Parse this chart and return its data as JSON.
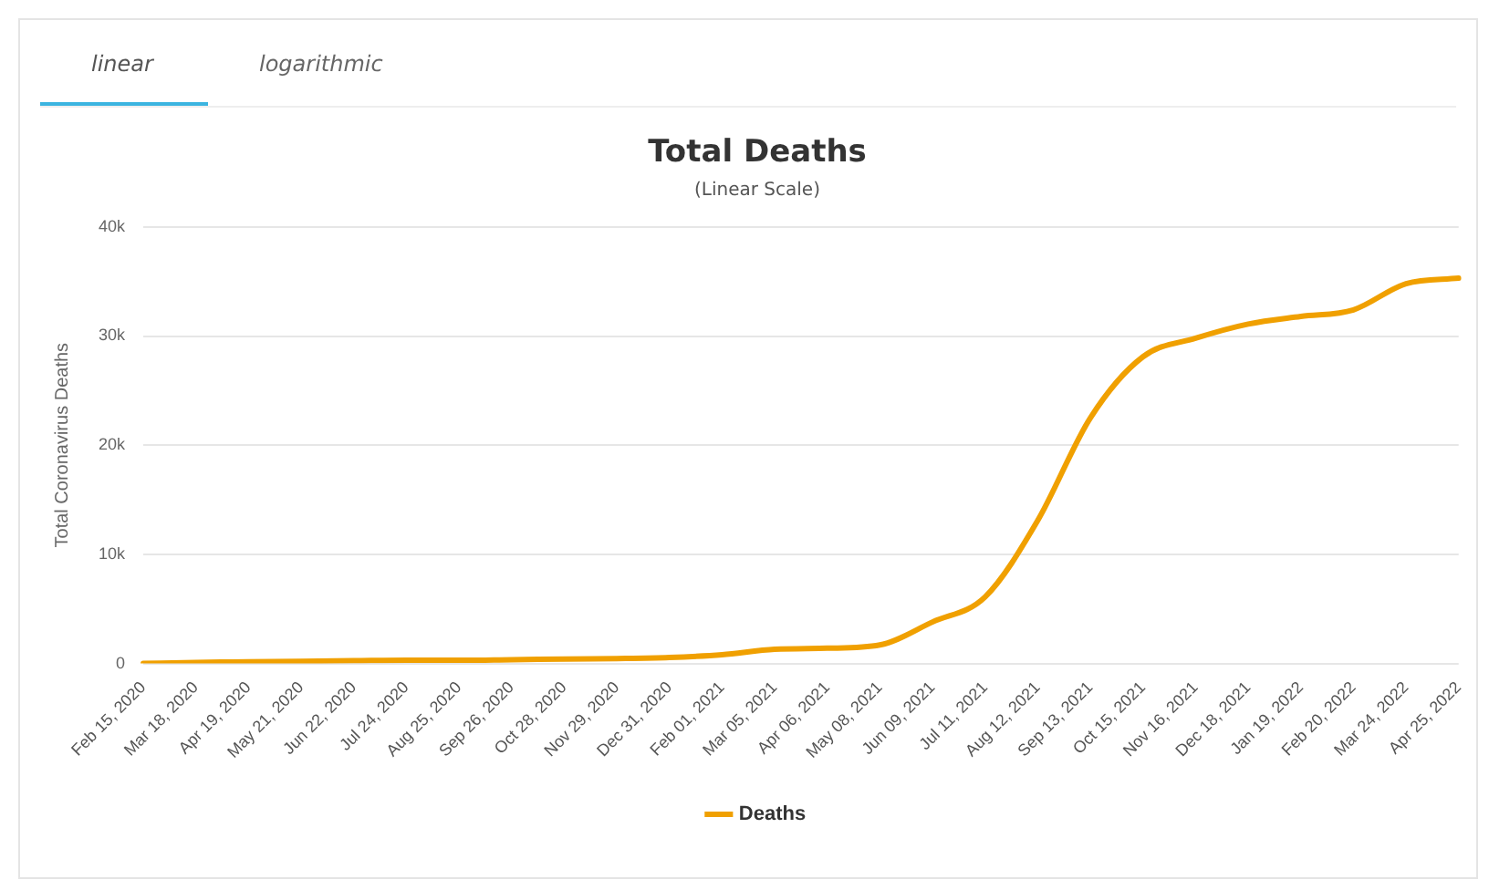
{
  "chart_data": {
    "type": "line",
    "title": "Total Deaths",
    "subtitle": "(Linear Scale)",
    "ylabel": "Total Coronavirus Deaths",
    "annotations": [
      "linear",
      "logarithmic"
    ],
    "categories": [
      "Feb 15, 2020",
      "Mar 18, 2020",
      "Apr 19, 2020",
      "May 21, 2020",
      "Jun 22, 2020",
      "Jul 24, 2020",
      "Aug 25, 2020",
      "Sep 26, 2020",
      "Oct 28, 2020",
      "Nov 29, 2020",
      "Dec 31, 2020",
      "Feb 01, 2021",
      "Mar 05, 2021",
      "Apr 06, 2021",
      "May 08, 2021",
      "Jun 09, 2021",
      "Jul 11, 2021",
      "Aug 12, 2021",
      "Sep 13, 2021",
      "Oct 15, 2021",
      "Nov 16, 2021",
      "Dec 18, 2021",
      "Jan 19, 2022",
      "Feb 20, 2022",
      "Mar 24, 2022",
      "Apr 25, 2022"
    ],
    "series": [
      {
        "name": "Deaths",
        "color": "#f0a000",
        "values": [
          0,
          100,
          150,
          200,
          250,
          300,
          300,
          350,
          400,
          450,
          550,
          800,
          1300,
          1400,
          1700,
          3800,
          6100,
          13100,
          22500,
          28100,
          29800,
          31100,
          31800,
          32400,
          34800,
          35300
        ]
      }
    ],
    "ylim": [
      0,
      40000
    ],
    "yticks": [
      {
        "value": 0,
        "label": "0"
      },
      {
        "value": 10000,
        "label": "10k"
      },
      {
        "value": 20000,
        "label": "20k"
      },
      {
        "value": 30000,
        "label": "30k"
      },
      {
        "value": 40000,
        "label": "40k"
      }
    ],
    "grid": "y",
    "legend": "bottom",
    "marker": "none",
    "line_style": "solid"
  }
}
